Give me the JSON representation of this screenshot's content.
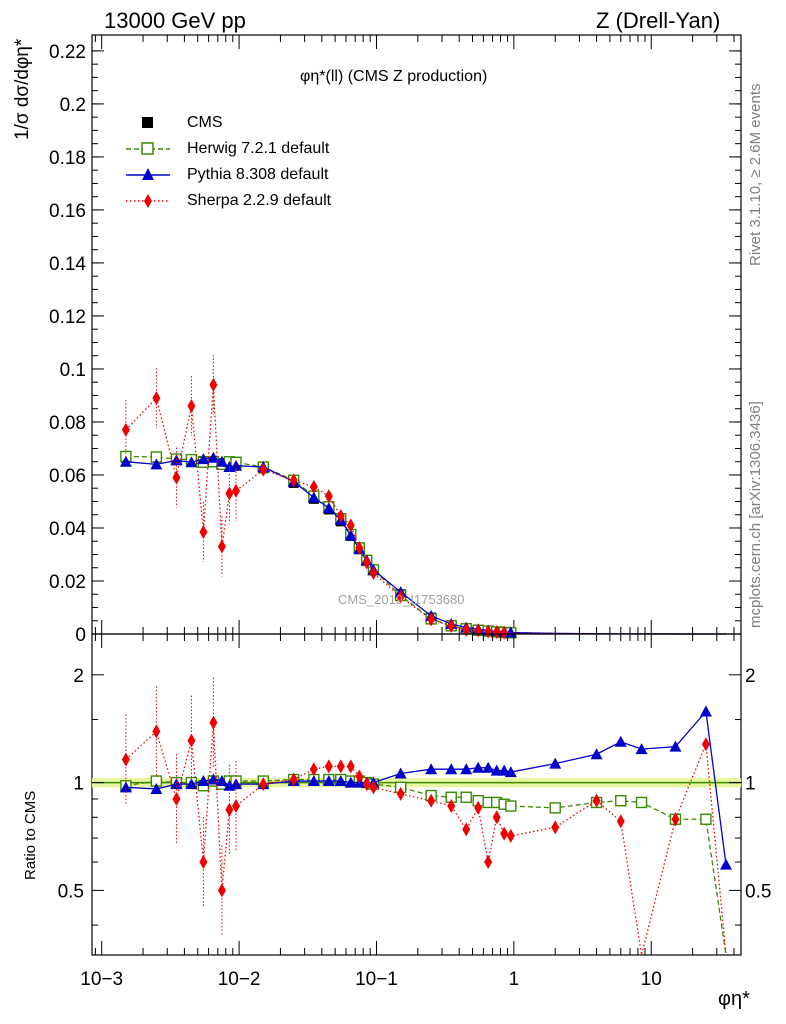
{
  "header": {
    "left": "13000 GeV pp",
    "right": "Z (Drell-Yan)"
  },
  "side_labels": {
    "rivet": "Rivet 3.1.10, ≥ 2.6M events",
    "mcplots": "mcplots.cern.ch [arXiv:1306.3436]"
  },
  "plot_title": "φη*(ll) (CMS Z production)",
  "watermark": "CMS_2019_I1753680",
  "y_label_top": "1/σ dσ/dφη*",
  "y_label_bottom": "Ratio to CMS",
  "x_label": "φη*",
  "legend": [
    {
      "label": "CMS",
      "color": "#000000",
      "marker": "square-filled",
      "line": "none"
    },
    {
      "label": "Herwig 7.2.1 default",
      "color": "#3a8a00",
      "marker": "square-open",
      "line": "dashed"
    },
    {
      "label": "Pythia 8.308 default",
      "color": "#0000cc",
      "marker": "triangle",
      "line": "solid"
    },
    {
      "label": "Sherpa 2.2.9 default",
      "color": "#ee0000",
      "marker": "diamond",
      "line": "dotted"
    }
  ],
  "top_ticks": [
    "0",
    "0.02",
    "0.04",
    "0.06",
    "0.08",
    "0.1",
    "0.12",
    "0.14",
    "0.16",
    "0.18",
    "0.2",
    "0.22"
  ],
  "ratio_ticks": [
    "0.5",
    "1",
    "2"
  ],
  "x_ticks": [
    "10−3",
    "10−2",
    "10−1",
    "1",
    "10"
  ],
  "chart_data": [
    {
      "type": "scatter",
      "title": "φη*(ll) (CMS Z production)",
      "xlabel": "φη*",
      "ylabel": "1/σ dσ/dφη*",
      "xscale": "log",
      "xlim": [
        0.00085,
        45
      ],
      "ylim": [
        0,
        0.226
      ],
      "x": [
        0.0015,
        0.0025,
        0.0035,
        0.0045,
        0.0055,
        0.0065,
        0.0075,
        0.0085,
        0.0095,
        0.015,
        0.025,
        0.035,
        0.045,
        0.055,
        0.065,
        0.075,
        0.085,
        0.095,
        0.15,
        0.25,
        0.35,
        0.45,
        0.55,
        0.65,
        0.75,
        0.85,
        0.95,
        2,
        4,
        6,
        8.5,
        15,
        25,
        35
      ],
      "series": [
        {
          "name": "CMS",
          "values": [
            0.0665,
            0.0665,
            0.0658,
            0.0655,
            0.0652,
            0.0648,
            0.0645,
            0.0642,
            0.064,
            0.0625,
            0.057,
            0.051,
            0.047,
            0.0425,
            0.037,
            0.032,
            0.0275,
            0.024,
            0.015,
            0.0062,
            0.0034,
            0.0022,
            0.0016,
            0.0012,
            0.0009,
            0.0007,
            0.0005,
            0.00022,
            8e-05,
            5e-05,
            3e-05,
            1.5e-05,
            6e-06,
            3e-06
          ]
        },
        {
          "name": "Herwig 7.2.1 default",
          "values": [
            0.067,
            0.0668,
            0.066,
            0.0658,
            0.0648,
            0.065,
            0.064,
            0.065,
            0.0648,
            0.063,
            0.058,
            0.052,
            0.048,
            0.0435,
            0.0375,
            0.0325,
            0.0278,
            0.0242,
            0.0145,
            0.0057,
            0.0031,
            0.002,
            0.0014,
            0.0011,
            0.0008,
            0.0006,
            0.00045,
            0.0002,
            7e-05,
            4.5e-05,
            2.7e-05,
            1.2e-05,
            5e-06,
            1e-06
          ]
        },
        {
          "name": "Pythia 8.308 default",
          "values": [
            0.065,
            0.064,
            0.0655,
            0.0648,
            0.066,
            0.0665,
            0.065,
            0.063,
            0.0635,
            0.063,
            0.0575,
            0.0515,
            0.0475,
            0.043,
            0.0372,
            0.032,
            0.0278,
            0.0242,
            0.0158,
            0.0068,
            0.0038,
            0.0024,
            0.0018,
            0.0013,
            0.001,
            0.0008,
            0.00055,
            0.00025,
            9e-05,
            6e-05,
            3.5e-05,
            1.8e-05,
            9e-06,
            2e-06
          ]
        },
        {
          "name": "Sherpa 2.2.9 default",
          "values": [
            0.077,
            0.089,
            0.059,
            0.086,
            0.0385,
            0.094,
            0.033,
            0.053,
            0.054,
            0.062,
            0.058,
            0.0555,
            0.052,
            0.0445,
            0.041,
            0.0325,
            0.027,
            0.023,
            0.014,
            0.0055,
            0.003,
            0.0016,
            0.0013,
            0.0009,
            0.0007,
            0.0005,
            0.00035,
            0.00017,
            7e-05,
            4e-05,
            2.5e-05,
            1.2e-05,
            8e-06,
            5e-07
          ]
        }
      ]
    },
    {
      "type": "scatter",
      "ylabel": "Ratio to CMS",
      "xlabel": "φη*",
      "xscale": "log",
      "yscale": "log",
      "xlim": [
        0.00085,
        45
      ],
      "ylim": [
        0.33,
        2.6
      ],
      "x": [
        0.0015,
        0.0025,
        0.0035,
        0.0045,
        0.0055,
        0.0065,
        0.0075,
        0.0085,
        0.0095,
        0.015,
        0.025,
        0.035,
        0.045,
        0.055,
        0.065,
        0.075,
        0.085,
        0.095,
        0.15,
        0.25,
        0.35,
        0.45,
        0.55,
        0.65,
        0.75,
        0.85,
        0.95,
        2,
        4,
        6,
        8.5,
        15,
        25,
        35
      ],
      "series": [
        {
          "name": "Herwig 7.2.1 default",
          "values": [
            0.98,
            1.01,
            1.0,
            1.0,
            0.98,
            1.01,
            0.99,
            1.01,
            1.01,
            1.01,
            1.02,
            1.02,
            1.02,
            1.02,
            1.01,
            1.01,
            1.0,
            0.99,
            0.97,
            0.92,
            0.91,
            0.91,
            0.89,
            0.88,
            0.88,
            0.87,
            0.86,
            0.85,
            0.88,
            0.89,
            0.88,
            0.79,
            0.79,
            0.3
          ]
        },
        {
          "name": "Pythia 8.308 default",
          "values": [
            0.97,
            0.96,
            0.99,
            0.99,
            1.01,
            1.02,
            1.01,
            0.98,
            0.99,
            0.99,
            1.01,
            1.01,
            1.01,
            1.01,
            1.0,
            1.0,
            1.0,
            1.0,
            1.06,
            1.09,
            1.09,
            1.09,
            1.1,
            1.1,
            1.08,
            1.08,
            1.07,
            1.13,
            1.2,
            1.3,
            1.24,
            1.26,
            1.58,
            0.59
          ]
        },
        {
          "name": "Sherpa 2.2.9 default",
          "values": [
            1.16,
            1.39,
            0.9,
            1.31,
            0.6,
            1.47,
            0.5,
            0.84,
            0.86,
            0.99,
            1.02,
            1.09,
            1.11,
            1.11,
            1.11,
            1.04,
            0.99,
            0.97,
            0.93,
            0.89,
            0.86,
            0.74,
            0.85,
            0.6,
            0.8,
            0.72,
            0.71,
            0.75,
            0.89,
            0.78,
            0.0,
            0.79,
            1.28,
            0.0
          ]
        }
      ]
    }
  ]
}
